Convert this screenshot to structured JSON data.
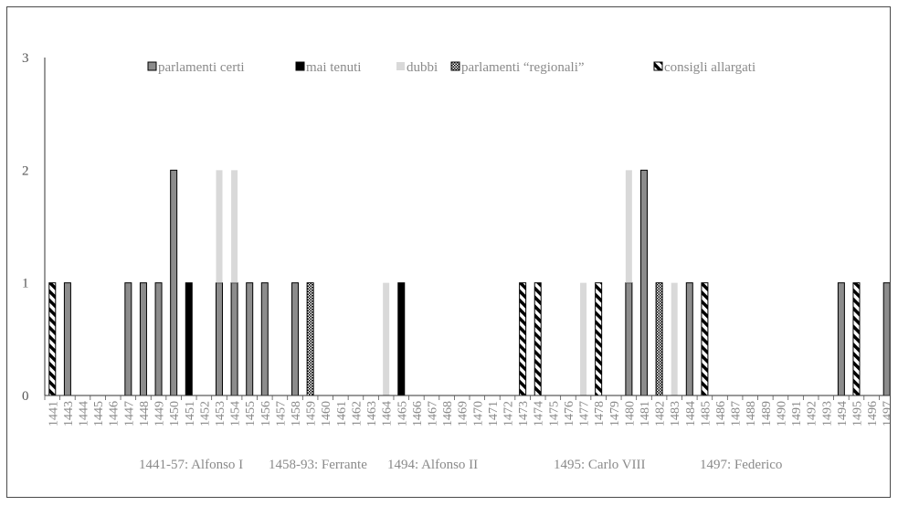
{
  "chart_data": {
    "type": "bar",
    "stacked": true,
    "ylim": [
      0,
      3
    ],
    "yticks": [
      "0",
      "1",
      "2",
      "3"
    ],
    "grid": false,
    "legend_position": "top",
    "categories": [
      "1441",
      "1443",
      "1444",
      "1445",
      "1446",
      "1447",
      "1448",
      "1449",
      "1450",
      "1451",
      "1452",
      "1453",
      "1454",
      "1455",
      "1456",
      "1457",
      "1458",
      "1459",
      "1460",
      "1461",
      "1462",
      "1463",
      "1464",
      "1465",
      "1466",
      "1467",
      "1468",
      "1469",
      "1470",
      "1471",
      "1472",
      "1473",
      "1474",
      "1475",
      "1476",
      "1477",
      "1478",
      "1479",
      "1480",
      "1481",
      "1482",
      "1483",
      "1484",
      "1485",
      "1486",
      "1487",
      "1488",
      "1489",
      "1490",
      "1491",
      "1492",
      "1493",
      "1494",
      "1495",
      "1496",
      "1497"
    ],
    "series": [
      {
        "name": "parlamenti certi",
        "style": "gray",
        "color": "#8c8c8c",
        "values": [
          0,
          1,
          0,
          0,
          0,
          1,
          1,
          1,
          2,
          0,
          0,
          1,
          1,
          1,
          1,
          0,
          1,
          0,
          0,
          0,
          0,
          0,
          0,
          0,
          0,
          0,
          0,
          0,
          0,
          0,
          0,
          0,
          0,
          0,
          0,
          0,
          0,
          0,
          1,
          2,
          0,
          0,
          1,
          0,
          0,
          0,
          0,
          0,
          0,
          0,
          0,
          0,
          1,
          0,
          0,
          1
        ]
      },
      {
        "name": "mai tenuti",
        "style": "black",
        "color": "#000000",
        "values": [
          0,
          0,
          0,
          0,
          0,
          0,
          0,
          0,
          0,
          1,
          0,
          0,
          0,
          0,
          0,
          0,
          0,
          0,
          0,
          0,
          0,
          0,
          0,
          1,
          0,
          0,
          0,
          0,
          0,
          0,
          0,
          0,
          0,
          0,
          0,
          0,
          0,
          0,
          0,
          0,
          0,
          0,
          0,
          0,
          0,
          0,
          0,
          0,
          0,
          0,
          0,
          0,
          0,
          0,
          0,
          0
        ]
      },
      {
        "name": "dubbi",
        "style": "light",
        "color": "#d9d9d9",
        "values": [
          0,
          0,
          0,
          0,
          0,
          0,
          0,
          0,
          0,
          0,
          0,
          1,
          1,
          0,
          0,
          0,
          0,
          0,
          0,
          0,
          0,
          0,
          1,
          0,
          0,
          0,
          0,
          0,
          0,
          0,
          0,
          0,
          0,
          0,
          0,
          1,
          0,
          0,
          1,
          0,
          0,
          1,
          0,
          0,
          0,
          0,
          0,
          0,
          0,
          0,
          0,
          0,
          0,
          0,
          0,
          0
        ]
      },
      {
        "name": "parlamenti “regionali”",
        "style": "dotted",
        "color": "#000000",
        "values": [
          0,
          0,
          0,
          0,
          0,
          0,
          0,
          0,
          0,
          0,
          0,
          0,
          0,
          0,
          0,
          0,
          0,
          1,
          0,
          0,
          0,
          0,
          0,
          0,
          0,
          0,
          0,
          0,
          0,
          0,
          0,
          0,
          0,
          0,
          0,
          0,
          0,
          0,
          0,
          0,
          1,
          0,
          0,
          0,
          0,
          0,
          0,
          0,
          0,
          0,
          0,
          0,
          0,
          0,
          0,
          0
        ]
      },
      {
        "name": "consigli allargati",
        "style": "striped",
        "color": "#000000",
        "values": [
          1,
          0,
          0,
          0,
          0,
          0,
          0,
          0,
          0,
          0,
          0,
          0,
          0,
          0,
          0,
          0,
          0,
          0,
          0,
          0,
          0,
          0,
          0,
          0,
          0,
          0,
          0,
          0,
          0,
          0,
          0,
          1,
          1,
          0,
          0,
          0,
          1,
          0,
          0,
          0,
          0,
          0,
          0,
          1,
          0,
          0,
          0,
          0,
          0,
          0,
          0,
          0,
          0,
          1,
          0,
          0
        ]
      }
    ],
    "reigns": [
      "1441-57: Alfonso I",
      "1458-93: Ferrante",
      "1494: Alfonso II",
      "1495: Carlo VIII",
      "1497: Federico"
    ]
  }
}
